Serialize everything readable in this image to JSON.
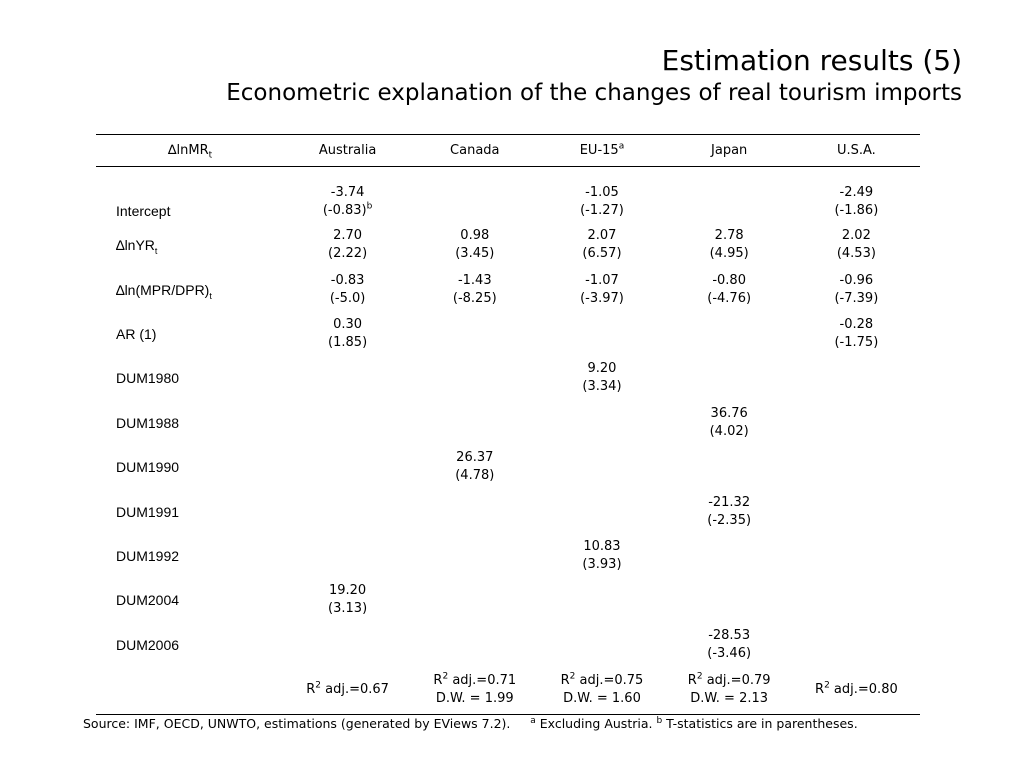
{
  "header": {
    "title": "Estimation results (5)",
    "subtitle": "Econometric explanation of the changes of real tourism imports"
  },
  "table": {
    "corner": {
      "prefix": "∆lnMR",
      "sub": "t"
    },
    "columns": [
      {
        "label": "Australia",
        "sup": ""
      },
      {
        "label": "Canada",
        "sup": ""
      },
      {
        "label": "EU-15",
        "sup": "a"
      },
      {
        "label": "Japan",
        "sup": ""
      },
      {
        "label": "U.S.A.",
        "sup": ""
      }
    ],
    "rows": [
      {
        "label": "Intercept",
        "label_sub": "",
        "label_tail": "",
        "cells": [
          {
            "coef": "-3.74",
            "tstat": "(-0.83)",
            "tsup": "b"
          },
          {
            "coef": "",
            "tstat": "",
            "tsup": ""
          },
          {
            "coef": "-1.05",
            "tstat": "(-1.27)",
            "tsup": ""
          },
          {
            "coef": "",
            "tstat": "",
            "tsup": ""
          },
          {
            "coef": "-2.49",
            "tstat": "(-1.86)",
            "tsup": ""
          }
        ]
      },
      {
        "label": "∆lnYR",
        "label_sub": "t",
        "label_tail": "",
        "cells": [
          {
            "coef": "2.70",
            "tstat": "(2.22)",
            "tsup": ""
          },
          {
            "coef": "0.98",
            "tstat": "(3.45)",
            "tsup": ""
          },
          {
            "coef": "2.07",
            "tstat": "(6.57)",
            "tsup": ""
          },
          {
            "coef": "2.78",
            "tstat": "(4.95)",
            "tsup": ""
          },
          {
            "coef": "2.02",
            "tstat": "(4.53)",
            "tsup": ""
          }
        ]
      },
      {
        "label": "∆ln(MPR/DPR)",
        "label_sub": "t",
        "label_tail": "",
        "cells": [
          {
            "coef": "-0.83",
            "tstat": "(-5.0)",
            "tsup": ""
          },
          {
            "coef": "-1.43",
            "tstat": "(-8.25)",
            "tsup": ""
          },
          {
            "coef": "-1.07",
            "tstat": "(-3.97)",
            "tsup": ""
          },
          {
            "coef": "-0.80",
            "tstat": "(-4.76)",
            "tsup": ""
          },
          {
            "coef": "-0.96",
            "tstat": "(-7.39)",
            "tsup": ""
          }
        ]
      },
      {
        "label": "AR (1)",
        "label_sub": "",
        "label_tail": "",
        "cells": [
          {
            "coef": "0.30",
            "tstat": "(1.85)",
            "tsup": ""
          },
          {
            "coef": "",
            "tstat": "",
            "tsup": ""
          },
          {
            "coef": "",
            "tstat": "",
            "tsup": ""
          },
          {
            "coef": "",
            "tstat": "",
            "tsup": ""
          },
          {
            "coef": "-0.28",
            "tstat": "(-1.75)",
            "tsup": ""
          }
        ]
      },
      {
        "label": "DUM1980",
        "label_sub": "",
        "label_tail": "",
        "cells": [
          {
            "coef": "",
            "tstat": "",
            "tsup": ""
          },
          {
            "coef": "",
            "tstat": "",
            "tsup": ""
          },
          {
            "coef": "9.20",
            "tstat": "(3.34)",
            "tsup": ""
          },
          {
            "coef": "",
            "tstat": "",
            "tsup": ""
          },
          {
            "coef": "",
            "tstat": "",
            "tsup": ""
          }
        ]
      },
      {
        "label": "DUM1988",
        "label_sub": "",
        "label_tail": "",
        "cells": [
          {
            "coef": "",
            "tstat": "",
            "tsup": ""
          },
          {
            "coef": "",
            "tstat": "",
            "tsup": ""
          },
          {
            "coef": "",
            "tstat": "",
            "tsup": ""
          },
          {
            "coef": "36.76",
            "tstat": "(4.02)",
            "tsup": ""
          },
          {
            "coef": "",
            "tstat": "",
            "tsup": ""
          }
        ]
      },
      {
        "label": "DUM1990",
        "label_sub": "",
        "label_tail": "",
        "cells": [
          {
            "coef": "",
            "tstat": "",
            "tsup": ""
          },
          {
            "coef": "26.37",
            "tstat": "(4.78)",
            "tsup": ""
          },
          {
            "coef": "",
            "tstat": "",
            "tsup": ""
          },
          {
            "coef": "",
            "tstat": "",
            "tsup": ""
          },
          {
            "coef": "",
            "tstat": "",
            "tsup": ""
          }
        ]
      },
      {
        "label": "DUM1991",
        "label_sub": "",
        "label_tail": "",
        "cells": [
          {
            "coef": "",
            "tstat": "",
            "tsup": ""
          },
          {
            "coef": "",
            "tstat": "",
            "tsup": ""
          },
          {
            "coef": "",
            "tstat": "",
            "tsup": ""
          },
          {
            "coef": "-21.32",
            "tstat": "(-2.35)",
            "tsup": ""
          },
          {
            "coef": "",
            "tstat": "",
            "tsup": ""
          }
        ]
      },
      {
        "label": "DUM1992",
        "label_sub": "",
        "label_tail": "",
        "cells": [
          {
            "coef": "",
            "tstat": "",
            "tsup": ""
          },
          {
            "coef": "",
            "tstat": "",
            "tsup": ""
          },
          {
            "coef": "10.83",
            "tstat": "(3.93)",
            "tsup": ""
          },
          {
            "coef": "",
            "tstat": "",
            "tsup": ""
          },
          {
            "coef": "",
            "tstat": "",
            "tsup": ""
          }
        ]
      },
      {
        "label": "DUM2004",
        "label_sub": "",
        "label_tail": "",
        "cells": [
          {
            "coef": "19.20",
            "tstat": "(3.13)",
            "tsup": ""
          },
          {
            "coef": "",
            "tstat": "",
            "tsup": ""
          },
          {
            "coef": "",
            "tstat": "",
            "tsup": ""
          },
          {
            "coef": "",
            "tstat": "",
            "tsup": ""
          },
          {
            "coef": "",
            "tstat": "",
            "tsup": ""
          }
        ]
      },
      {
        "label": "DUM2006",
        "label_sub": "",
        "label_tail": "",
        "cells": [
          {
            "coef": "",
            "tstat": "",
            "tsup": ""
          },
          {
            "coef": "",
            "tstat": "",
            "tsup": ""
          },
          {
            "coef": "",
            "tstat": "",
            "tsup": ""
          },
          {
            "coef": "-28.53",
            "tstat": "(-3.46)",
            "tsup": ""
          },
          {
            "coef": "",
            "tstat": "",
            "tsup": ""
          }
        ]
      }
    ],
    "stats": [
      {
        "r2_label": "R",
        "r2_sup": "2",
        "r2_text": " adj.=0.67",
        "dw": ""
      },
      {
        "r2_label": "R",
        "r2_sup": "2",
        "r2_text": " adj.=0.71",
        "dw": "D.W. = 1.99"
      },
      {
        "r2_label": "R",
        "r2_sup": "2",
        "r2_text": " adj.=0.75",
        "dw": "D.W. = 1.60"
      },
      {
        "r2_label": "R",
        "r2_sup": "2",
        "r2_text": " adj.=0.79",
        "dw": "D.W. = 2.13"
      },
      {
        "r2_label": "R",
        "r2_sup": "2",
        "r2_text": " adj.=0.80",
        "dw": ""
      }
    ]
  },
  "footnote": {
    "source": "Source: IMF, OECD, UNWTO, estimations (generated by EViews 7.2).",
    "a_mark": "a",
    "a_text": " Excluding Austria.",
    "b_mark": "b",
    "b_text": " T-statistics are in parentheses."
  }
}
